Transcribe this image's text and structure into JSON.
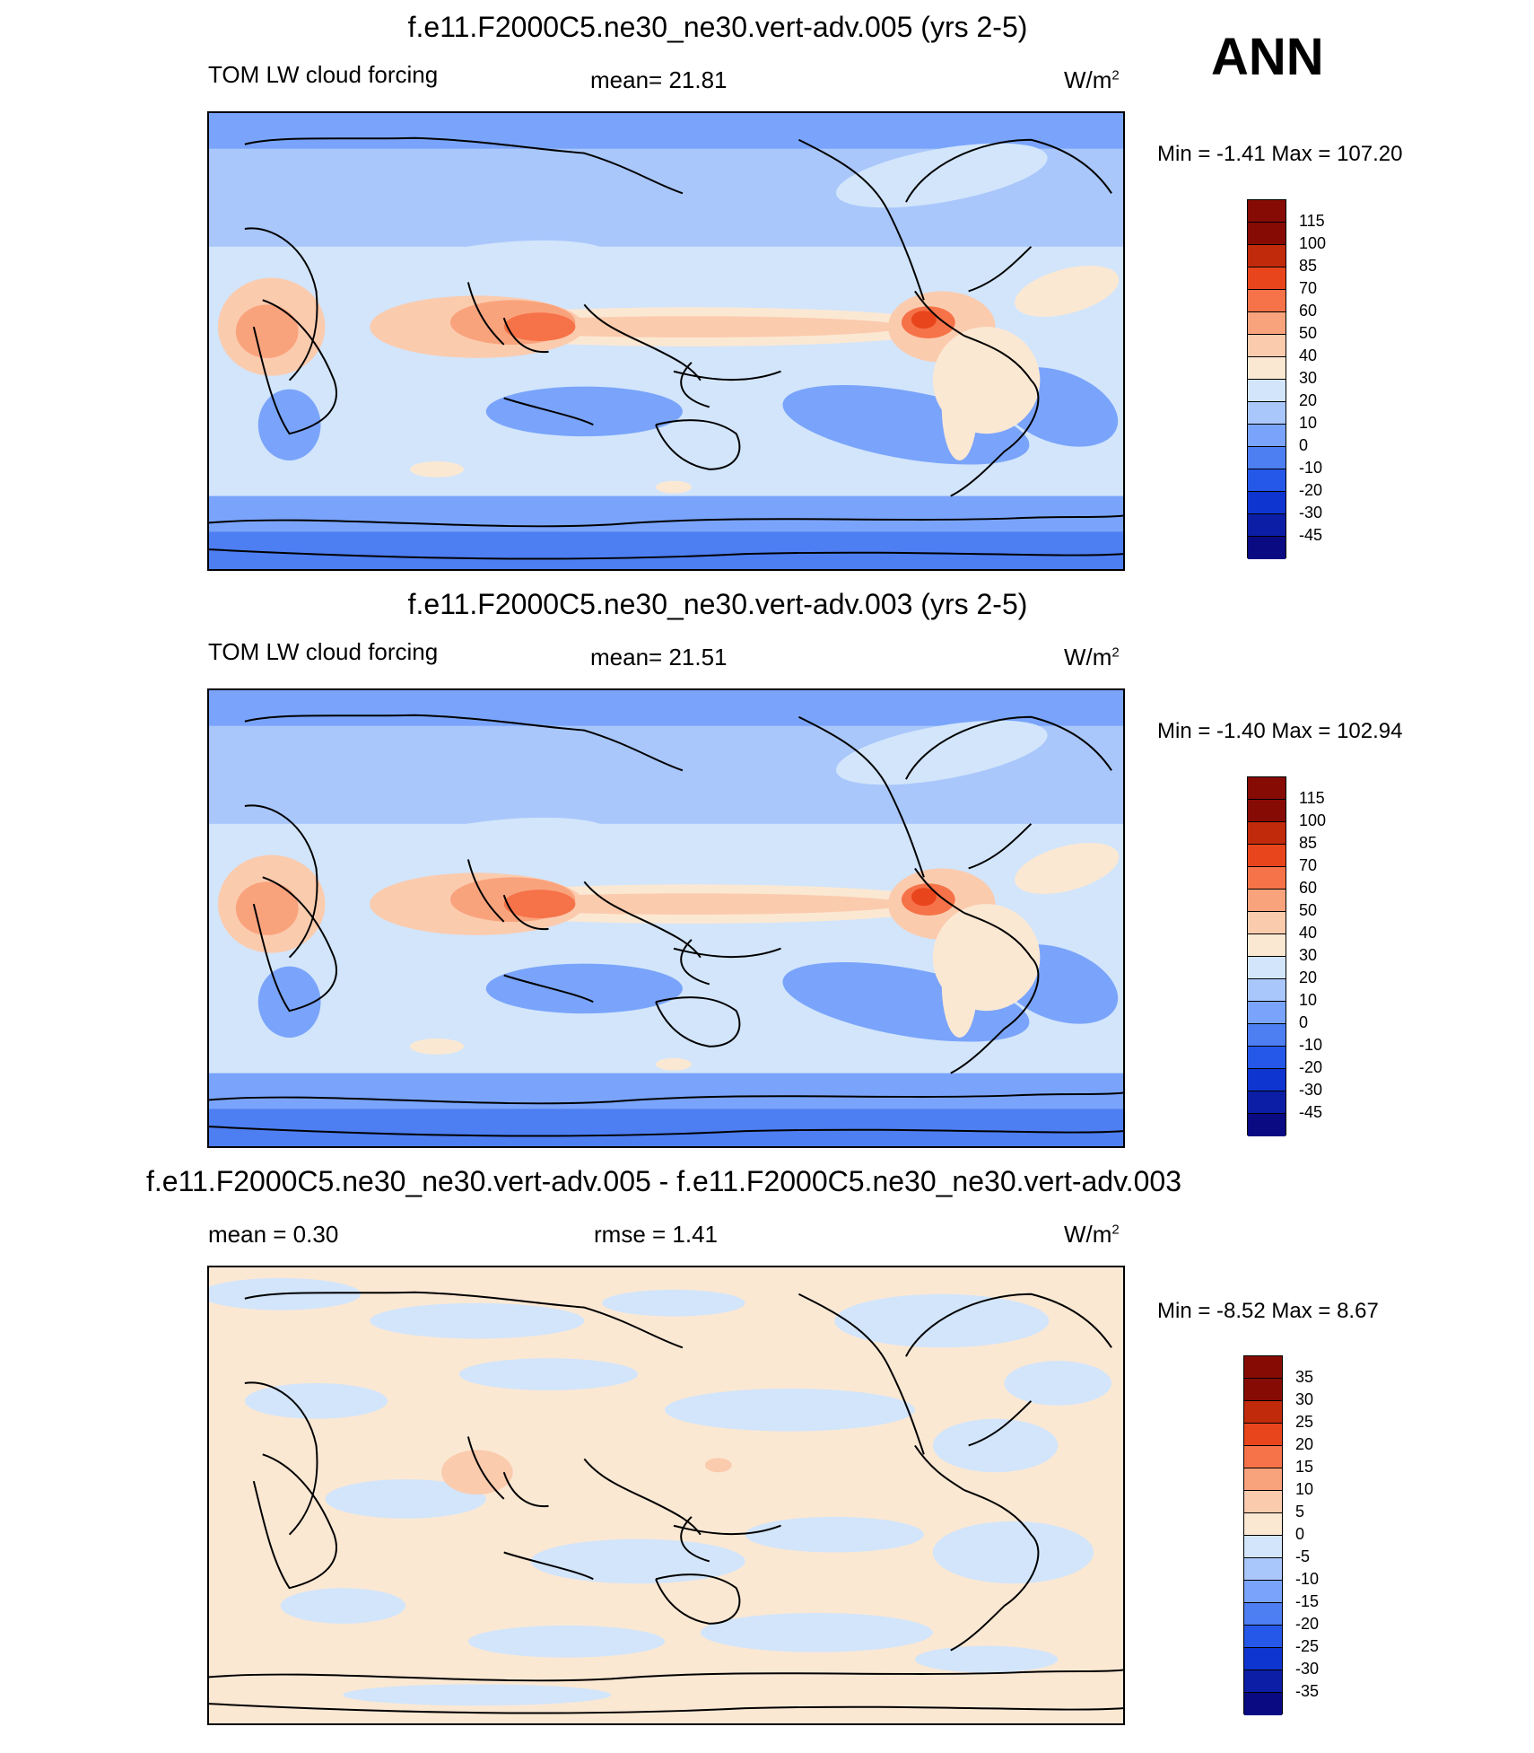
{
  "season": "ANN",
  "panel_colors_main": [
    "#0a0a82",
    "#0b1ea5",
    "#0e35cf",
    "#2557e8",
    "#4d7ef2",
    "#7aa4fb",
    "#a9c7fb",
    "#d2e5fb",
    "#fbe8d3",
    "#fbcbae",
    "#f9a37d",
    "#f67248",
    "#e9451d",
    "#c12a0b",
    "#870b05"
  ],
  "panel_colors_diff": [
    "#0a0a82",
    "#0b1ea5",
    "#0e35cf",
    "#2557e8",
    "#4d7ef2",
    "#7aa4fb",
    "#a9c7fb",
    "#d2e5fb",
    "#fbe8d3",
    "#fbcbae",
    "#f9a37d",
    "#f67248",
    "#e9451d",
    "#c12a0b",
    "#870b05"
  ],
  "panels": [
    {
      "title": "f.e11.F2000C5.ne30_ne30.vert-adv.005 (yrs 2-5)",
      "left_label": "TOM LW cloud forcing",
      "mean_label": "mean=  21.81",
      "units": "W/m",
      "units_exp": "2",
      "minmax": "Min =  -1.41 Max = 107.20",
      "chart_data": {
        "type": "heatmap",
        "variable": "TOM LW cloud forcing",
        "mean": 21.81,
        "min": -1.41,
        "max": 107.2,
        "contour_levels": [
          -45,
          -30,
          -20,
          -10,
          0,
          10,
          20,
          30,
          40,
          50,
          60,
          70,
          85,
          100,
          115
        ]
      }
    },
    {
      "title": "f.e11.F2000C5.ne30_ne30.vert-adv.003 (yrs 2-5)",
      "left_label": "TOM LW cloud forcing",
      "mean_label": "mean=  21.51",
      "units": "W/m",
      "units_exp": "2",
      "minmax": "Min =  -1.40 Max = 102.94",
      "chart_data": {
        "type": "heatmap",
        "variable": "TOM LW cloud forcing",
        "mean": 21.51,
        "min": -1.4,
        "max": 102.94,
        "contour_levels": [
          -45,
          -30,
          -20,
          -10,
          0,
          10,
          20,
          30,
          40,
          50,
          60,
          70,
          85,
          100,
          115
        ]
      }
    },
    {
      "title": "f.e11.F2000C5.ne30_ne30.vert-adv.005 - f.e11.F2000C5.ne30_ne30.vert-adv.003",
      "left_label": "mean =   0.30",
      "mean_label": "rmse =   1.41",
      "units": "W/m",
      "units_exp": "2",
      "minmax": "Min =  -8.52 Max =   8.67",
      "chart_data": {
        "type": "heatmap",
        "mean": 0.3,
        "rmse": 1.41,
        "min": -8.52,
        "max": 8.67,
        "contour_levels": [
          -35,
          -30,
          -25,
          -20,
          -15,
          -10,
          -5,
          0,
          5,
          10,
          15,
          20,
          25,
          30,
          35
        ]
      }
    }
  ]
}
